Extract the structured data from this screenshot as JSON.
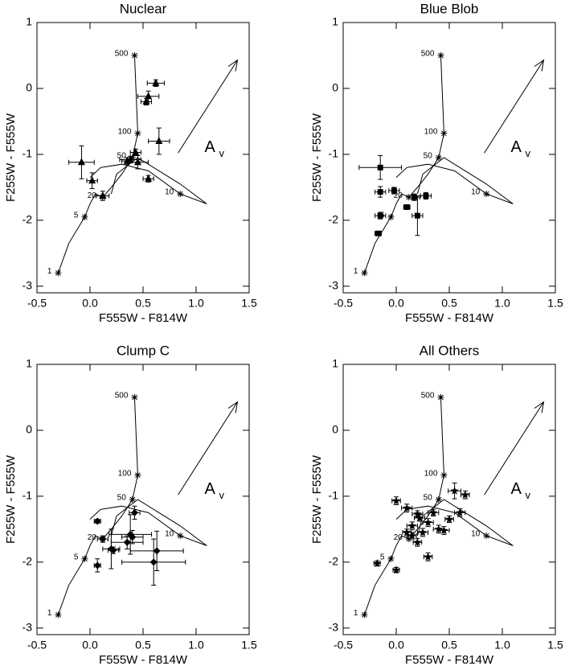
{
  "chart_data": [
    {
      "type": "scatter",
      "title": "Nuclear",
      "xlabel": "F555W - F814W",
      "ylabel": "F255W - F555W",
      "marker": "triangle",
      "color": "#000000",
      "xlim": [
        -0.5,
        1.5
      ],
      "ylim": [
        -3.1,
        1.0
      ],
      "xticks": [
        -0.5,
        {
          "value": 0,
          "label": "0.0"
        },
        0.5,
        {
          "value": 1,
          "label": "1.0"
        },
        1.5
      ],
      "yticks": [
        -3,
        -2,
        -1,
        0,
        1
      ],
      "x": [
        0.62,
        0.55,
        0.53,
        0.43,
        0.65,
        0.38,
        0.45,
        0.55,
        -0.08,
        0.02,
        0.12,
        0.35
      ],
      "y": [
        0.08,
        -0.12,
        -0.2,
        -0.97,
        -0.8,
        -1.08,
        -1.12,
        -1.37,
        -1.12,
        -1.4,
        -1.63,
        -1.1
      ],
      "xerr": [
        0.08,
        0.1,
        0.05,
        0.05,
        0.1,
        0.1,
        0.1,
        0.05,
        0.12,
        0.05,
        0.06,
        0.05
      ],
      "yerr": [
        0.05,
        0.08,
        0.05,
        0.05,
        0.2,
        0.05,
        0.1,
        0.05,
        0.25,
        0.12,
        0.07,
        0.05
      ]
    },
    {
      "type": "scatter",
      "title": "Blue Blob",
      "xlabel": "F555W - F814W",
      "ylabel": "F255W - F555W",
      "marker": "square",
      "color": "#000000",
      "xlim": [
        -0.5,
        1.5
      ],
      "ylim": [
        -3.1,
        1.0
      ],
      "xticks": [
        -0.5,
        {
          "value": 0,
          "label": "0.0"
        },
        0.5,
        {
          "value": 1,
          "label": "1.0"
        },
        1.5
      ],
      "yticks": [
        -3,
        -2,
        -1,
        0,
        1
      ],
      "x": [
        -0.15,
        -0.15,
        -0.02,
        0.28,
        -0.15,
        0.1,
        0.2,
        -0.17,
        0.17
      ],
      "y": [
        -1.2,
        -1.57,
        -1.55,
        -1.63,
        -1.93,
        -1.8,
        -1.93,
        -2.2,
        -1.65
      ],
      "xerr": [
        0.2,
        0.05,
        0.05,
        0.05,
        0.05,
        0.03,
        0.05,
        0.03,
        0.05
      ],
      "yerr": [
        0.18,
        0.08,
        0.05,
        0.05,
        0.05,
        0.03,
        0.3,
        0.03,
        0.05
      ]
    },
    {
      "type": "scatter",
      "title": "Clump C",
      "xlabel": "F555W - F814W",
      "ylabel": "F255W - F555W",
      "marker": "diamond",
      "color": "#000000",
      "xlim": [
        -0.5,
        1.5
      ],
      "ylim": [
        -3.1,
        1.0
      ],
      "xticks": [
        -0.5,
        {
          "value": 0,
          "label": "0.0"
        },
        0.5,
        {
          "value": 1,
          "label": "1.0"
        },
        1.5
      ],
      "yticks": [
        -3,
        -2,
        -1,
        0,
        1
      ],
      "x": [
        0.07,
        0.42,
        0.38,
        0.12,
        0.22,
        0.35,
        0.4,
        0.07,
        0.63,
        0.6,
        0.2
      ],
      "y": [
        -1.38,
        -1.25,
        -1.58,
        -1.65,
        -1.82,
        -1.7,
        -1.62,
        -2.05,
        -1.83,
        -2.0,
        -1.8
      ],
      "xerr": [
        0.03,
        0.05,
        0.2,
        0.05,
        0.05,
        0.15,
        0.1,
        0.03,
        0.25,
        0.3,
        0.08
      ],
      "yerr": [
        0.03,
        0.1,
        0.3,
        0.05,
        0.05,
        0.1,
        0.1,
        0.1,
        0.3,
        0.35,
        0.3
      ]
    },
    {
      "type": "scatter",
      "title": "All Others",
      "xlabel": "F555W - F814W",
      "ylabel": "F255W - F555W",
      "marker": "star",
      "color": "#000000",
      "xlim": [
        -0.5,
        1.5
      ],
      "ylim": [
        -3.1,
        1.0
      ],
      "xticks": [
        -0.5,
        {
          "value": 0,
          "label": "0.0"
        },
        0.5,
        {
          "value": 1,
          "label": "1.0"
        },
        1.5
      ],
      "yticks": [
        -3,
        -2,
        -1,
        0,
        1
      ],
      "x": [
        0.0,
        0.1,
        0.2,
        0.35,
        0.55,
        0.65,
        0.6,
        0.5,
        0.3,
        0.15,
        0.25,
        0.4,
        0.1,
        0.2,
        0.3,
        0.45,
        -0.18,
        0.0,
        0.15,
        0.22
      ],
      "y": [
        -1.07,
        -1.18,
        -1.27,
        -1.25,
        -0.92,
        -0.98,
        -1.25,
        -1.35,
        -1.4,
        -1.45,
        -1.55,
        -1.5,
        -1.55,
        -1.7,
        -1.92,
        -1.52,
        -2.02,
        -2.12,
        -1.6,
        -1.33
      ],
      "xerr": [
        0.04,
        0.05,
        0.05,
        0.05,
        0.06,
        0.04,
        0.05,
        0.04,
        0.05,
        0.05,
        0.05,
        0.05,
        0.04,
        0.04,
        0.04,
        0.05,
        0.03,
        0.03,
        0.04,
        0.05
      ],
      "yerr": [
        0.06,
        0.06,
        0.05,
        0.05,
        0.12,
        0.06,
        0.06,
        0.05,
        0.06,
        0.06,
        0.06,
        0.06,
        0.05,
        0.06,
        0.06,
        0.06,
        0.04,
        0.04,
        0.05,
        0.05
      ]
    }
  ],
  "model_ages": {
    "labels": [
      1,
      5,
      10,
      20,
      50,
      100,
      500
    ],
    "x": [
      -0.3,
      -0.05,
      0.85,
      0.12,
      0.4,
      0.45,
      0.42
    ],
    "y": [
      -2.8,
      -1.95,
      -1.6,
      -1.65,
      -1.05,
      -0.68,
      0.5
    ]
  },
  "model_tracks": [
    {
      "x": [
        -0.3,
        -0.2,
        -0.05,
        0.0,
        0.05,
        0.12,
        0.2,
        0.3,
        0.4,
        0.45,
        0.42
      ],
      "y": [
        -2.8,
        -2.35,
        -1.95,
        -1.75,
        -1.6,
        -1.65,
        -1.5,
        -1.3,
        -1.05,
        -0.68,
        0.5
      ]
    },
    {
      "x": [
        0.0,
        0.1,
        0.3,
        0.55,
        0.85,
        1.1
      ],
      "y": [
        -1.35,
        -1.2,
        -1.15,
        -1.25,
        -1.6,
        -1.75
      ]
    },
    {
      "x": [
        0.2,
        0.25,
        0.45,
        0.65,
        0.85,
        1.1
      ],
      "y": [
        -1.6,
        -1.3,
        -1.05,
        -1.25,
        -1.45,
        -1.75
      ]
    }
  ],
  "reddening_vector": {
    "label": "A",
    "subscript": "v",
    "x": [
      0.83,
      1.39
    ],
    "y": [
      -0.98,
      0.43
    ],
    "label_x": 1.08,
    "label_y": -0.9
  }
}
